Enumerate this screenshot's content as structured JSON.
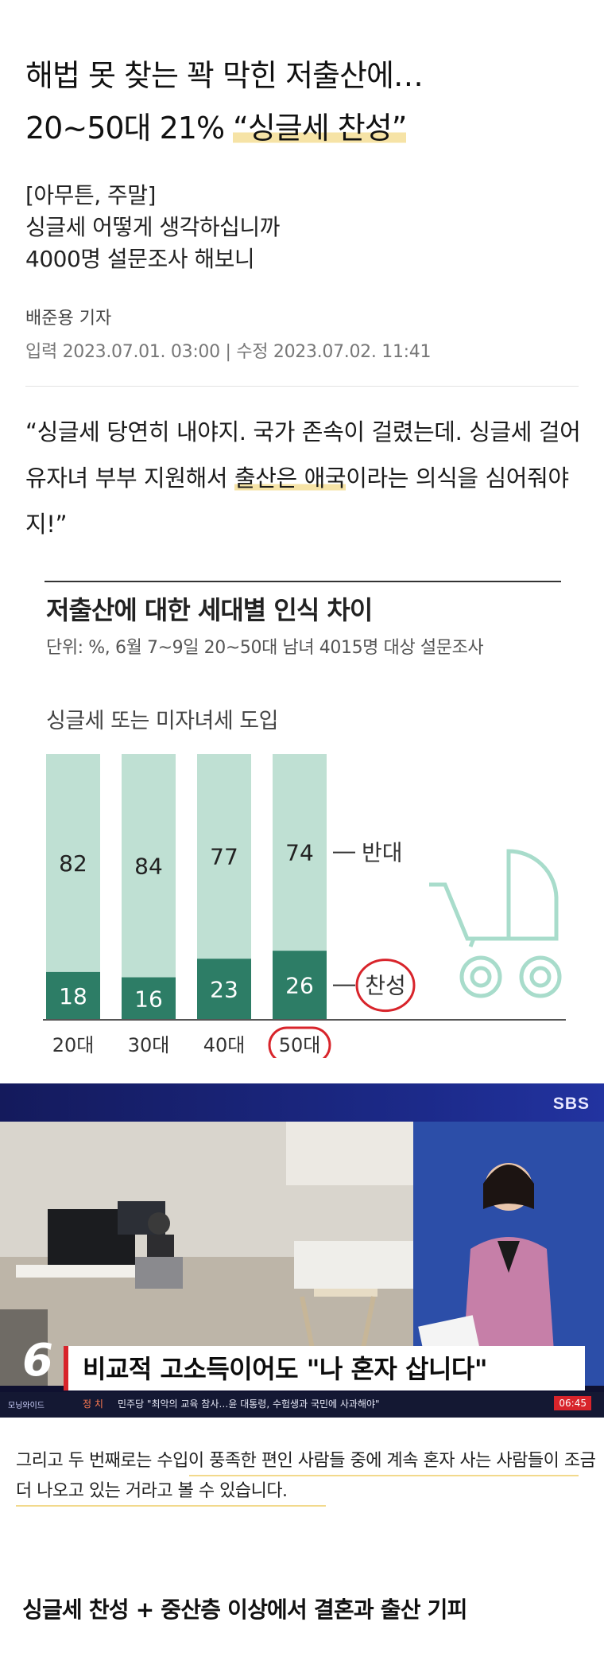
{
  "headline": {
    "line1": "해법 못 찾는 꽉 막힌 저출산에…",
    "line2_pre": "20~50대 21% ",
    "line2_hl": "“싱글세 찬성”"
  },
  "subheadline": [
    "[아무튼, 주말]",
    "싱글세 어떻게 생각하십니까",
    "4000명 설문조사 해보니"
  ],
  "byline": "배준용 기자",
  "dateline": "입력 2023.07.01. 03:00 | 수정 2023.07.02. 11:41",
  "quote": {
    "part1": "“싱글세 당연히 내야지. 국가 존속이 걸렸는데. 싱글세 걸어 유자녀 부부 지원해서 ",
    "hl": "출산은 애국",
    "part2": "이라는 의식을 심어줘야지!”"
  },
  "chart": {
    "title": "저출산에 대한 세대별 인식 차이",
    "unit": "단위: %, 6월 7~9일 20~50대 남녀 4015명 대상 설문조사",
    "subtitle": "싱글세 또는 미자녀세 도입"
  },
  "chart_data": {
    "type": "bar",
    "title": "저출산에 대한 세대별 인식 차이",
    "subtitle": "싱글세 또는 미자녀세 도입",
    "categories": [
      "20대",
      "30대",
      "40대",
      "50대"
    ],
    "series": [
      {
        "name": "찬성",
        "values": [
          18,
          16,
          23,
          26
        ]
      },
      {
        "name": "반대",
        "values": [
          82,
          84,
          77,
          74
        ]
      }
    ],
    "stacked": true,
    "ylim": [
      0,
      100
    ],
    "colors": {
      "찬성": "#2d7d66",
      "반대": "#bfe0d3"
    },
    "legend_labels": {
      "against": "반대",
      "favor": "찬성"
    },
    "highlight_category": "50대"
  },
  "broadcast": {
    "channel": "SBS",
    "program_num": "6",
    "program_name": "모닝와이드",
    "lower_third": "비교적 고소득이어도 \"나 혼자 삽니다\"",
    "ticker_label": "정 치",
    "ticker_text": "민주당 \"최악의 교육 참사…윤 대통령, 수험생과 국민에 사과해야\"",
    "time": "06:45"
  },
  "caption": "그리고 두 번째로는 수입이 풍족한 편인 사람들 중에 계속 혼자 사는 사람들이 조금 더 나오고 있는 거라고 볼 수 있습니다.",
  "bottom_line": "싱글세 찬성 + 중산층 이상에서 결혼과 출산 기피"
}
